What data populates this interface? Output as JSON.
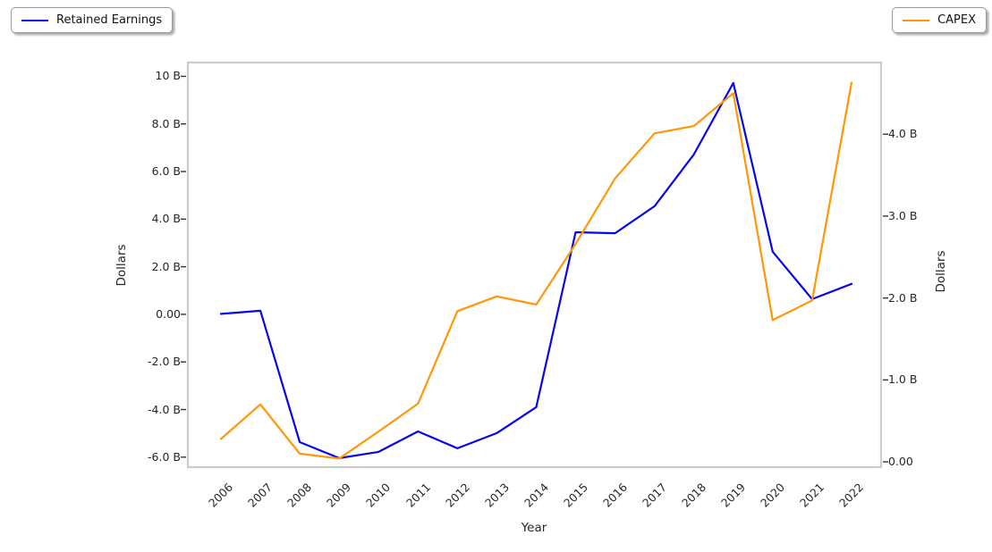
{
  "chart_data": {
    "type": "line",
    "x": [
      2006,
      2007,
      2008,
      2009,
      2010,
      2011,
      2012,
      2013,
      2014,
      2015,
      2016,
      2017,
      2018,
      2019,
      2020,
      2021,
      2022
    ],
    "xlabel": "Year",
    "series": [
      {
        "name": "Retained Earnings",
        "axis": "left",
        "color": "#0707ee",
        "values": [
          0.02,
          0.15,
          -5.37,
          -6.04,
          -5.78,
          -4.92,
          -5.63,
          -4.99,
          -3.9,
          3.45,
          3.41,
          4.54,
          6.72,
          9.72,
          2.63,
          0.64,
          1.28
        ]
      },
      {
        "name": "CAPEX",
        "axis": "right",
        "color": "#ff9708",
        "values": [
          0.28,
          0.7,
          0.1,
          0.04,
          0.37,
          0.71,
          1.84,
          2.02,
          1.92,
          2.66,
          3.46,
          4.01,
          4.1,
          4.5,
          1.73,
          1.97,
          4.63
        ]
      }
    ],
    "axes": {
      "x": {
        "min": 2005.16,
        "max": 2022.75,
        "ticks": [
          "2006",
          "2007",
          "2008",
          "2009",
          "2010",
          "2011",
          "2012",
          "2013",
          "2014",
          "2015",
          "2016",
          "2017",
          "2018",
          "2019",
          "2020",
          "2021",
          "2022"
        ]
      },
      "left": {
        "label": "Dollars",
        "min": -6.42,
        "max": 10.58,
        "ticks": [
          {
            "value": 10,
            "label": "10 B"
          },
          {
            "value": 8,
            "label": "8.0 B"
          },
          {
            "value": 6,
            "label": "6.0 B"
          },
          {
            "value": 4,
            "label": "4.0 B"
          },
          {
            "value": 2,
            "label": "2.0 B"
          },
          {
            "value": 0,
            "label": "0.00"
          },
          {
            "value": -2,
            "label": "-2.0 B"
          },
          {
            "value": -4,
            "label": "-4.0 B"
          },
          {
            "value": -6,
            "label": "-6.0 B"
          }
        ]
      },
      "right": {
        "label": "Dollars",
        "min": -0.065,
        "max": 4.875,
        "ticks": [
          {
            "value": 4,
            "label": "4.0 B"
          },
          {
            "value": 3,
            "label": "3.0 B"
          },
          {
            "value": 2,
            "label": "2.0 B"
          },
          {
            "value": 1,
            "label": "1.0 B"
          },
          {
            "value": 0,
            "label": "0.00"
          }
        ]
      }
    },
    "grid": false,
    "legend_positions": [
      "top-left",
      "top-right"
    ],
    "style": {
      "spine_color": "#cccccc",
      "tick_color": "#333333",
      "text_color": "#262626",
      "background": "#ffffff"
    }
  }
}
